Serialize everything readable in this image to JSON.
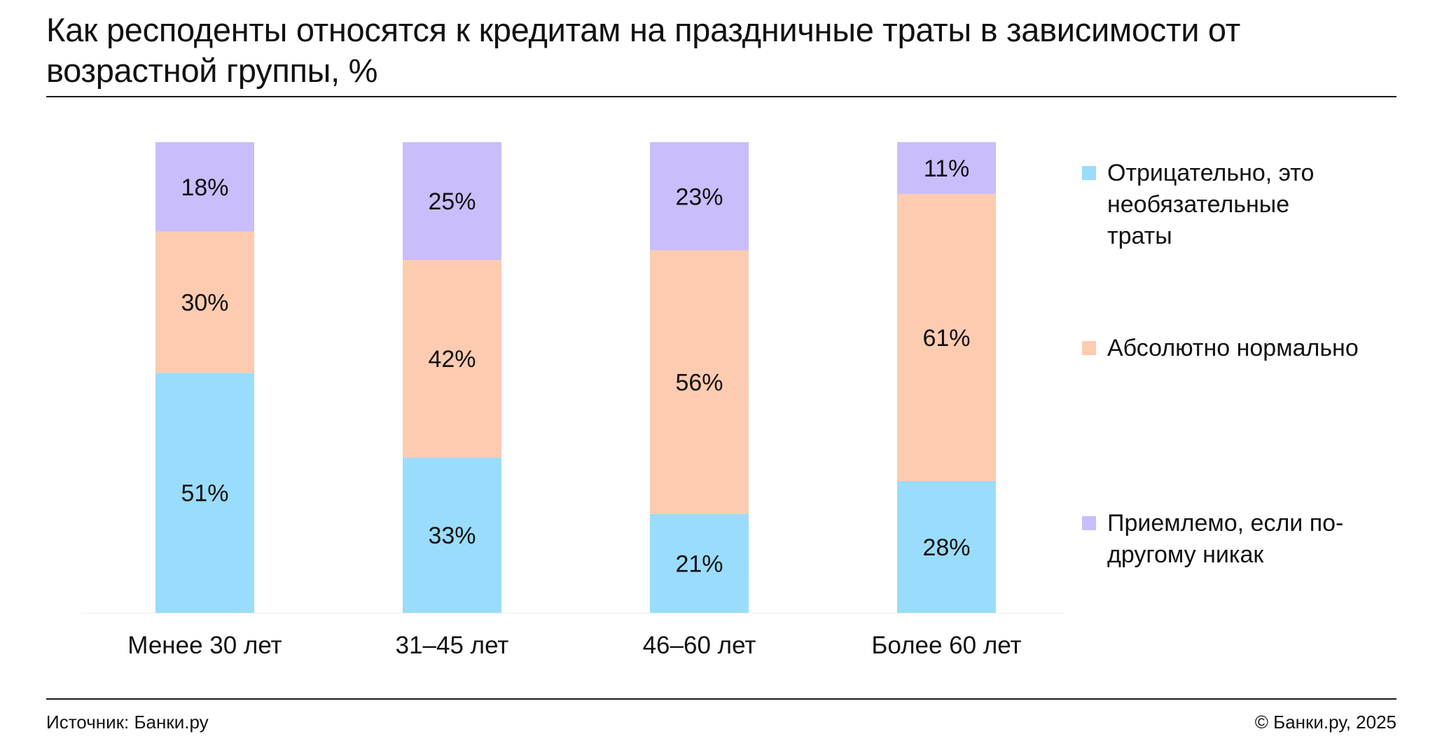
{
  "title": "Как респоденты относятся к кредитам на праздничные траты в зависимости от возрастной группы, %",
  "footer": {
    "source": "Источник: Банки.ру",
    "copyright": "© Банки.ру, 2025"
  },
  "colors": {
    "negative": "#9ADCFB",
    "normal": "#FDCBB0",
    "acceptable": "#C9BDFB"
  },
  "chart_data": {
    "type": "bar",
    "stacked": true,
    "orientation": "vertical",
    "title": "Как респоденты относятся к кредитам на праздничные траты в зависимости от возрастной группы, %",
    "xlabel": "",
    "ylabel": "",
    "ylim": [
      0,
      100
    ],
    "grid": false,
    "legend_position": "right",
    "categories": [
      "Менее 30 лет",
      "31–45 лет",
      "46–60 лет",
      "Более 60 лет"
    ],
    "series": [
      {
        "key": "negative",
        "name": "Отрицательно, это необязательные траты",
        "color": "#9ADCFB",
        "values": [
          51,
          33,
          21,
          28
        ],
        "labels": [
          "51%",
          "33%",
          "21%",
          "28%"
        ]
      },
      {
        "key": "normal",
        "name": "Абсолютно нормально",
        "color": "#FDCBB0",
        "values": [
          30,
          42,
          56,
          61
        ],
        "labels": [
          "30%",
          "42%",
          "56%",
          "61%"
        ]
      },
      {
        "key": "acceptable",
        "name": "Приемлемо, если по-другому никак",
        "color": "#C9BDFB",
        "values": [
          18,
          25,
          23,
          11
        ],
        "labels": [
          "18%",
          "25%",
          "23%",
          "11%"
        ]
      }
    ]
  }
}
